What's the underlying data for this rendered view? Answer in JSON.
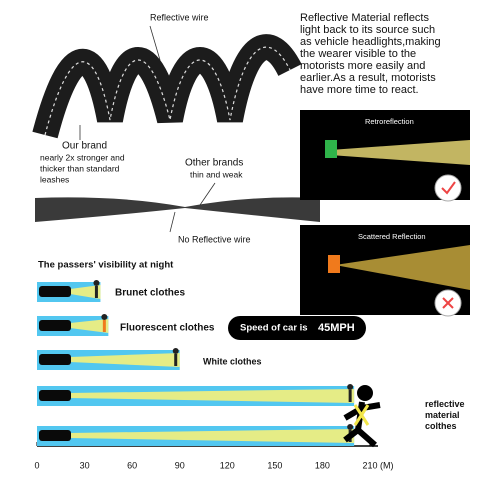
{
  "strap": {
    "reflective_label": "Reflective wire",
    "our_brand": "Our brand",
    "our_brand_note": [
      "nearly 2x stronger and",
      "thicker than standard",
      "leashes"
    ],
    "other_brands": "Other brands",
    "other_note": "thin and weak",
    "no_reflective": "No Reflective wire"
  },
  "description": [
    "Reflective Material reflects",
    "light back to its source such",
    "as vehicle headlights,making",
    "the wearer visible to the",
    "motorists more easily and",
    "earlier.As a result, motorists",
    "have more time to react."
  ],
  "panels": [
    {
      "label": "Retroreflection"
    },
    {
      "label": "Scattered Reflection"
    }
  ],
  "visibility": {
    "title": "The passers' visibility at night",
    "rows": [
      {
        "label": "Brunet clothes",
        "value": 40
      },
      {
        "label": "Fluorescent clothes",
        "value": 45
      },
      {
        "label": "White clothes",
        "value": 90
      },
      {
        "label": "reflective material colthes",
        "value": 200
      },
      {
        "label": null,
        "value": 200
      }
    ],
    "xlim": [
      0,
      210
    ],
    "xticks": [
      0,
      30,
      60,
      90,
      120,
      150,
      180,
      210
    ],
    "unit": "(M)",
    "speed_text": "Speed of car is",
    "speed_value": "45MPH"
  }
}
